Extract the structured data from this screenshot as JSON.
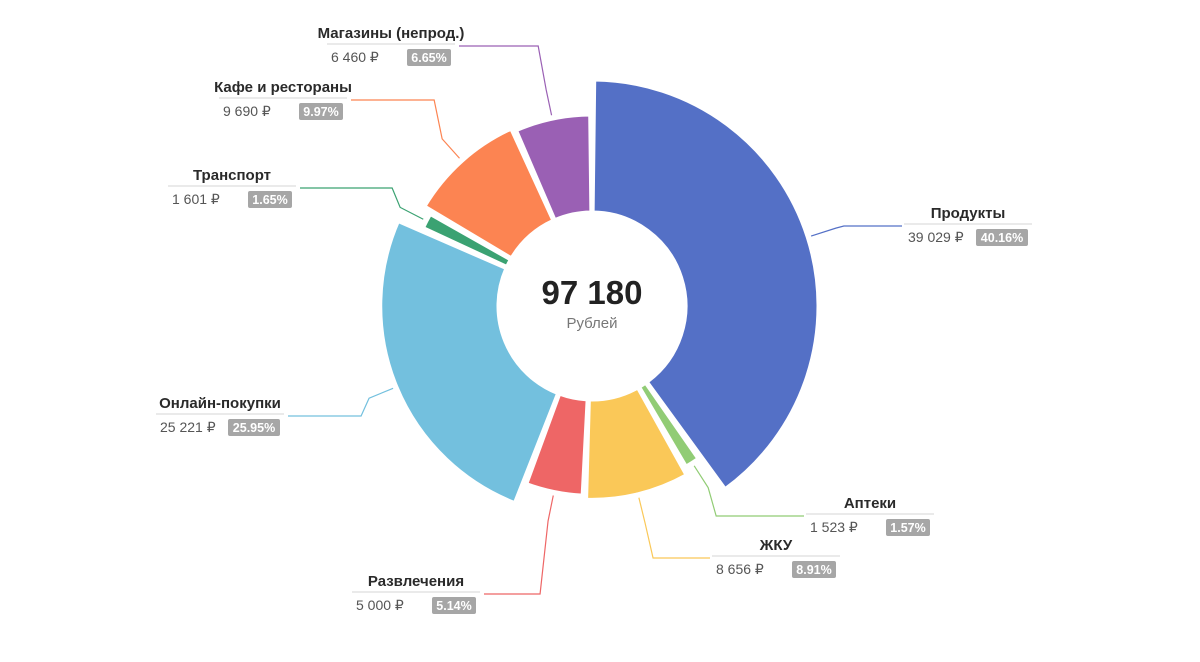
{
  "chart_data": {
    "type": "pie",
    "variant": "donut",
    "total": {
      "value": "97 180",
      "unit": "Рублей"
    },
    "series": [
      {
        "name": "Продукты",
        "amount": "39 029 ₽",
        "value": 39029,
        "percent": "40.16%",
        "color": "#5470c6"
      },
      {
        "name": "Аптеки",
        "amount": "1 523 ₽",
        "value": 1523,
        "percent": "1.57%",
        "color": "#91cc75"
      },
      {
        "name": "ЖКУ",
        "amount": "8 656 ₽",
        "value": 8656,
        "percent": "8.91%",
        "color": "#fac858"
      },
      {
        "name": "Развлечения",
        "amount": "5 000 ₽",
        "value": 5000,
        "percent": "5.14%",
        "color": "#ee6666"
      },
      {
        "name": "Онлайн-покупки",
        "amount": "25 221 ₽",
        "value": 25221,
        "percent": "25.95%",
        "color": "#73c0de"
      },
      {
        "name": "Транспорт",
        "amount": "1 601 ₽",
        "value": 1601,
        "percent": "1.65%",
        "color": "#3ba272"
      },
      {
        "name": "Кафе и рестораны",
        "amount": "9 690 ₽",
        "value": 9690,
        "percent": "9.97%",
        "color": "#fc8452"
      },
      {
        "name": "Магазины (непрод.)",
        "amount": "6 460 ₽",
        "value": 6460,
        "percent": "6.65%",
        "color": "#9a60b4"
      }
    ]
  }
}
